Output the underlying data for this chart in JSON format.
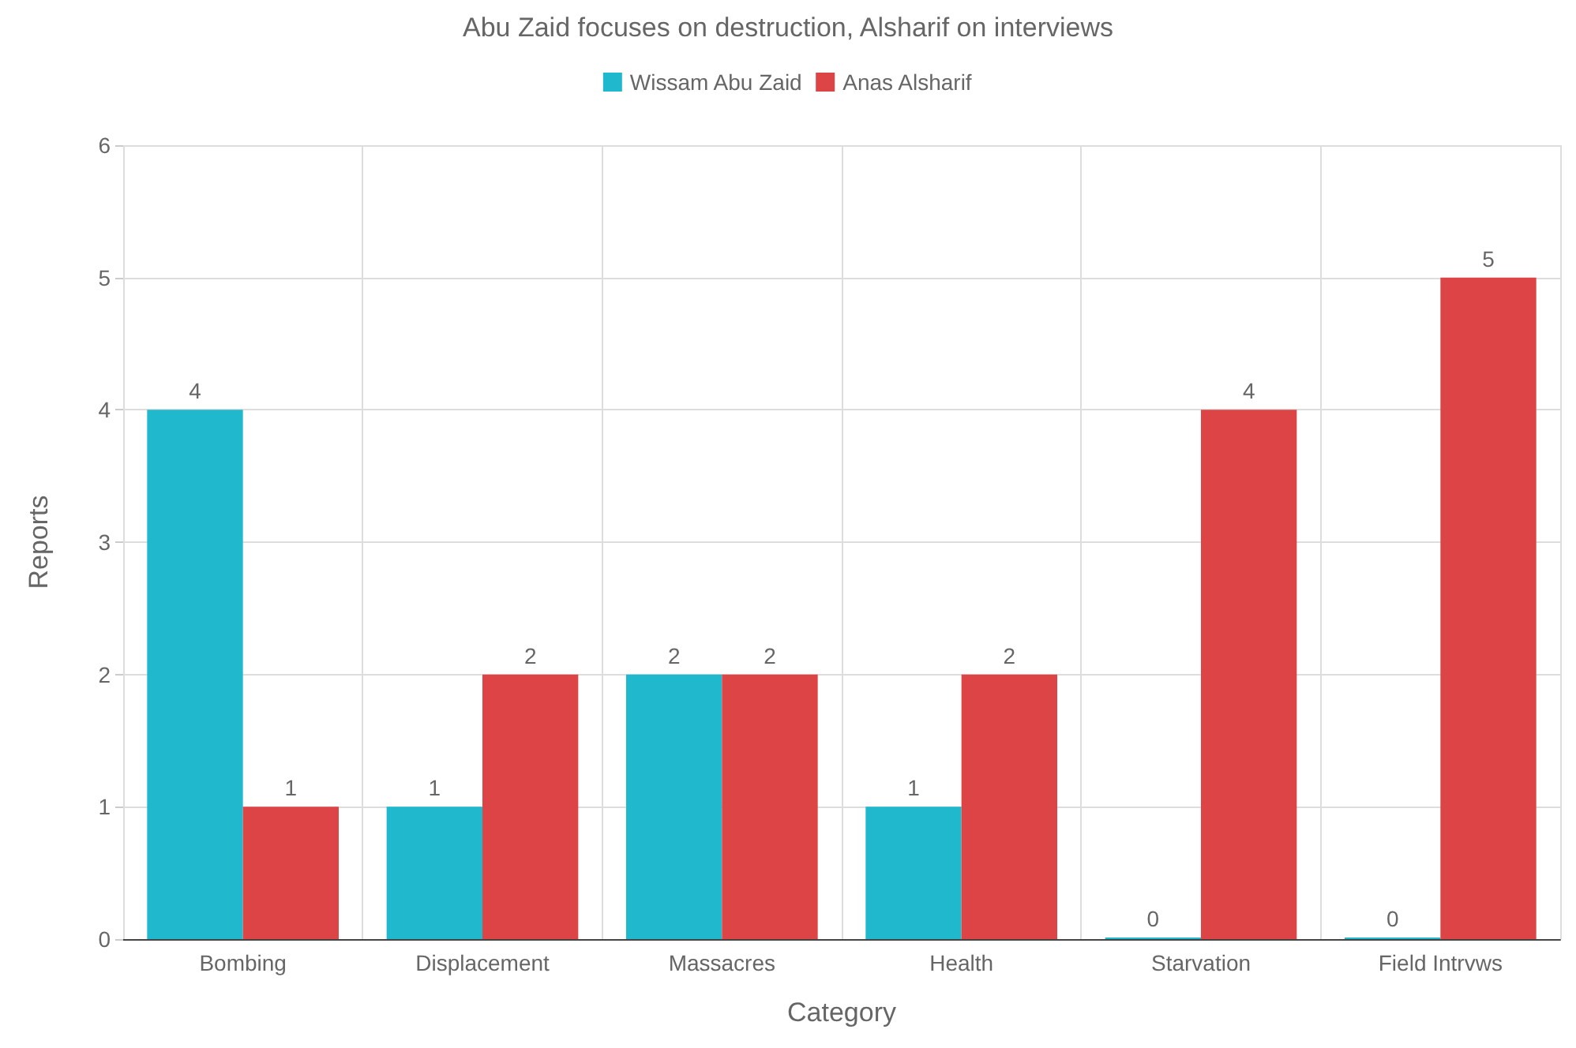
{
  "chart_data": {
    "type": "bar",
    "subtitle": "Abu Zaid focuses on destruction, Alsharif on interviews",
    "xlabel": "Category",
    "ylabel": "Reports",
    "categories": [
      "Bombing",
      "Displacement",
      "Massacres",
      "Health",
      "Starvation",
      "Field Intrvws"
    ],
    "series": [
      {
        "name": "Wissam Abu Zaid",
        "color": "#1fb8cc",
        "values": [
          4,
          1,
          2,
          1,
          0,
          0
        ]
      },
      {
        "name": "Anas Alsharif",
        "color": "#dc4446",
        "values": [
          1,
          2,
          2,
          2,
          4,
          5
        ]
      }
    ],
    "ylim": [
      0,
      6
    ],
    "yticks": [
      0,
      1,
      2,
      3,
      4,
      5,
      6
    ],
    "grid": true,
    "legend": "top",
    "data_labels": true
  }
}
